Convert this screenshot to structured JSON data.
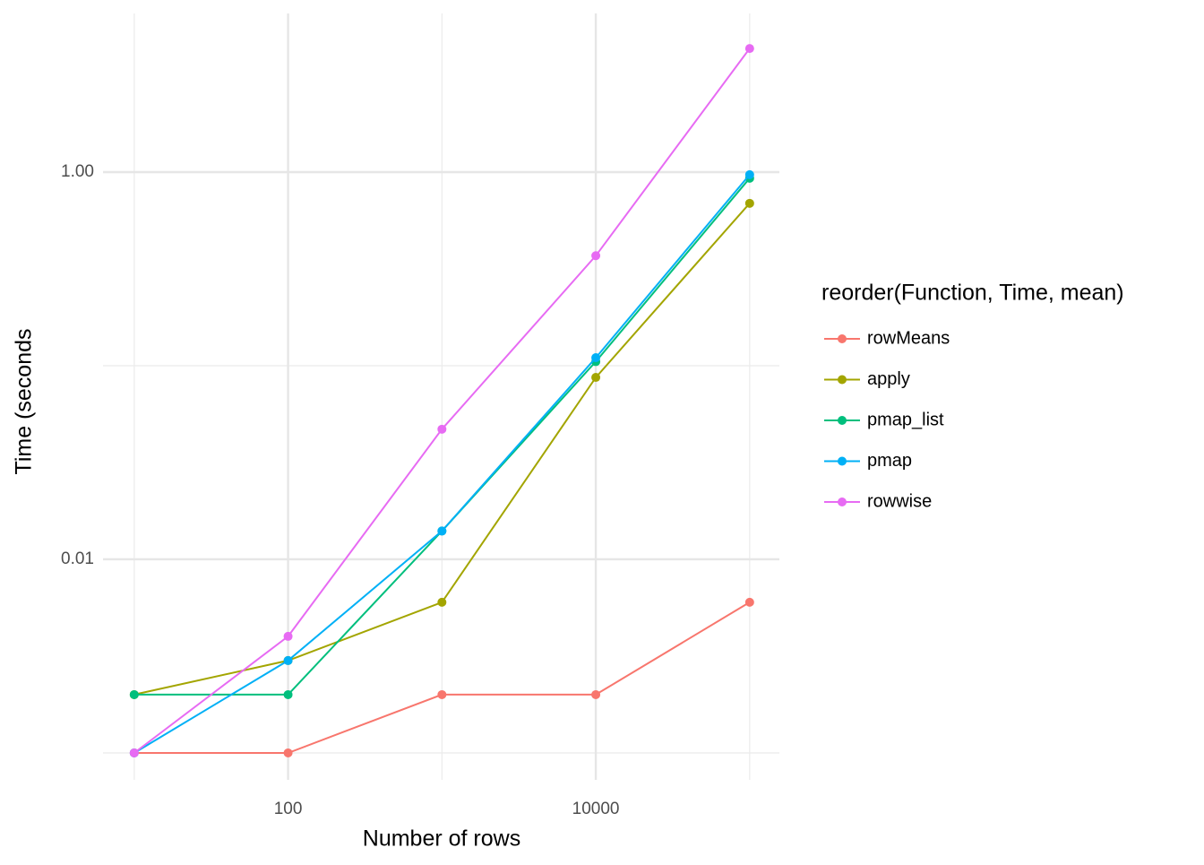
{
  "chart_data": {
    "type": "line",
    "x_label": "Number of rows",
    "y_label": "Time (seconds",
    "legend_title": "reorder(Function, Time, mean)",
    "x": [
      10,
      100,
      1000,
      10000,
      100000
    ],
    "xlim": [
      6.27,
      156000
    ],
    "xticks": [
      100,
      10000
    ],
    "x_minor_grid": [
      10,
      1000,
      100000
    ],
    "ylim": [
      0.000726,
      6.6
    ],
    "yticks": [
      0.01,
      {
        "value": 1,
        "label": "1.00"
      }
    ],
    "y_minor_grid": [
      0.001,
      0.1
    ],
    "xlog": true,
    "ylog": true,
    "grid": true,
    "legend_position": "right",
    "series": [
      {
        "name": "rowMeans",
        "color": "#F8766D",
        "values": [
          0.001,
          0.001,
          0.002,
          0.002,
          0.006
        ]
      },
      {
        "name": "apply",
        "color": "#A3A500",
        "values": [
          0.002,
          0.003,
          0.006,
          0.087,
          0.69
        ]
      },
      {
        "name": "pmap_list",
        "color": "#00BF7D",
        "values": [
          0.002,
          0.002,
          0.014,
          0.105,
          0.93
        ]
      },
      {
        "name": "pmap",
        "color": "#00B0F6",
        "values": [
          0.001,
          0.003,
          0.014,
          0.11,
          0.97
        ]
      },
      {
        "name": "rowwise",
        "color": "#E76BF3",
        "values": [
          0.001,
          0.004,
          0.047,
          0.37,
          4.35
        ]
      }
    ]
  }
}
